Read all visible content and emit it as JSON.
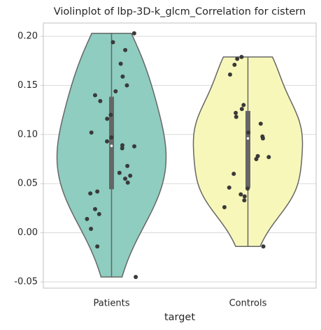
{
  "chart_data": {
    "type": "violin",
    "title": "Violinplot of lbp-3D-k_glcm_Correlation for cistern",
    "x_label": "target",
    "categories": [
      "Patients",
      "Controls"
    ],
    "colors": [
      "#8ecdc0",
      "#f7f7ba"
    ],
    "values": [
      [
        0.203,
        0.194,
        0.186,
        0.172,
        0.159,
        0.15,
        0.144,
        0.14,
        0.134,
        0.12,
        0.116,
        0.102,
        0.097,
        0.093,
        0.089,
        0.088,
        0.086,
        0.068,
        0.061,
        0.058,
        0.055,
        0.051,
        0.042,
        0.04,
        0.024,
        0.019,
        0.014,
        0.004,
        -0.014,
        -0.045
      ],
      [
        0.179,
        0.177,
        0.171,
        0.161,
        0.13,
        0.126,
        0.122,
        0.118,
        0.111,
        0.102,
        0.098,
        0.096,
        0.078,
        0.077,
        0.075,
        0.06,
        0.046,
        0.045,
        0.039,
        0.037,
        0.033,
        0.026,
        -0.014
      ]
    ],
    "ylim": [
      -0.0564,
      0.2135
    ],
    "yticks": [
      {
        "value": -0.05,
        "label": "-0.05"
      },
      {
        "value": 0,
        "label": "0.00"
      },
      {
        "value": 0.05,
        "label": "0.05"
      },
      {
        "value": 0.1,
        "label": "0.10"
      },
      {
        "value": 0.15,
        "label": "0.15"
      },
      {
        "value": 0.2,
        "label": "0.20"
      }
    ],
    "grid": true
  }
}
